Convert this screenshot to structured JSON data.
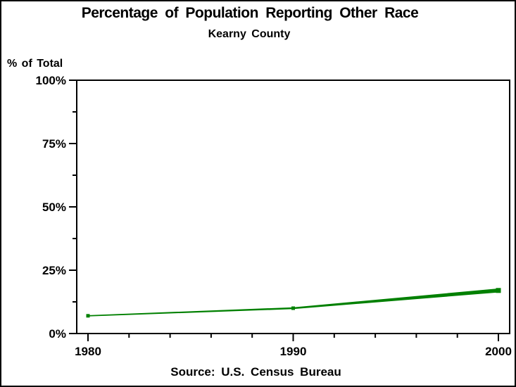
{
  "header": {
    "title": "Percentage of Population Reporting Other Race",
    "subtitle": "Kearny County"
  },
  "footer": {
    "source_note": "Source: U.S. Census Bureau"
  },
  "chart_data": {
    "type": "line",
    "title": "Percentage of Population Reporting Other Race",
    "subtitle": "Kearny County",
    "ylabel": "% of Total",
    "footnote": "Source: U.S. Census Bureau",
    "x": [
      1980,
      1990,
      2000
    ],
    "values": [
      7,
      10,
      17
    ],
    "xlim": [
      1980,
      2000
    ],
    "ylim": [
      0,
      100
    ],
    "x_major_ticks": [
      {
        "value": 1980,
        "label": "1980"
      },
      {
        "value": 1990,
        "label": "1990"
      },
      {
        "value": 2000,
        "label": "2000"
      }
    ],
    "x_minor_tick_values": [
      1982,
      1984,
      1986,
      1988,
      1992,
      1994,
      1996,
      1998
    ],
    "y_major_ticks": [
      {
        "value": 0,
        "label": "0%"
      },
      {
        "value": 25,
        "label": "25%"
      },
      {
        "value": 50,
        "label": "50%"
      },
      {
        "value": 75,
        "label": "75%"
      },
      {
        "value": 100,
        "label": "100%"
      }
    ],
    "y_minor_tick_values": [
      12.5,
      37.5,
      62.5,
      87.5
    ],
    "line_color": "#008000",
    "axis_color": "#000000",
    "frame": true,
    "grid": false,
    "legend": "none"
  }
}
